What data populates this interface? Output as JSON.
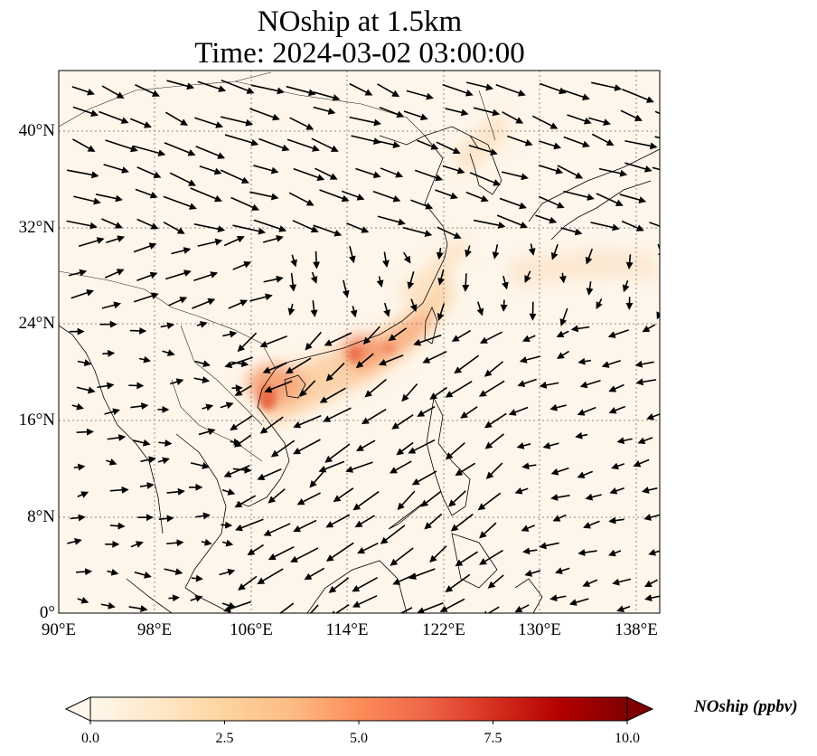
{
  "title": {
    "line1": "NOship at 1.5km",
    "line2": "Time: 2024-03-02 03:00:00"
  },
  "map": {
    "lat_labels": [
      "40°N",
      "32°N",
      "24°N",
      "16°N",
      "8°N",
      "0°"
    ],
    "lon_labels": [
      "90°E",
      "98°E",
      "106°E",
      "114°E",
      "122°E",
      "130°E",
      "138°E"
    ],
    "lat_range": [
      0,
      45
    ],
    "lon_range": [
      90,
      140
    ],
    "gridlines": "dotted",
    "field_colors": {
      "base": "#fef6ea",
      "light": "#fde8cf",
      "mid": "#fcc393",
      "strong": "#f08a5a",
      "max": "#e45f3a"
    },
    "vector_color": "#000000",
    "coastline_color": "#000000"
  },
  "colorbar": {
    "label": "NOship (ppbv)",
    "ticks": [
      "0.0",
      "2.5",
      "5.0",
      "7.5",
      "10.0"
    ],
    "range": [
      0,
      10
    ],
    "extend": "both",
    "colormap": "OrRd",
    "colors": [
      "#fff7ec",
      "#fee8c8",
      "#fdd49e",
      "#fdbb84",
      "#fc8d59",
      "#ef6548",
      "#d7301f",
      "#b30000",
      "#7f0000"
    ]
  }
}
